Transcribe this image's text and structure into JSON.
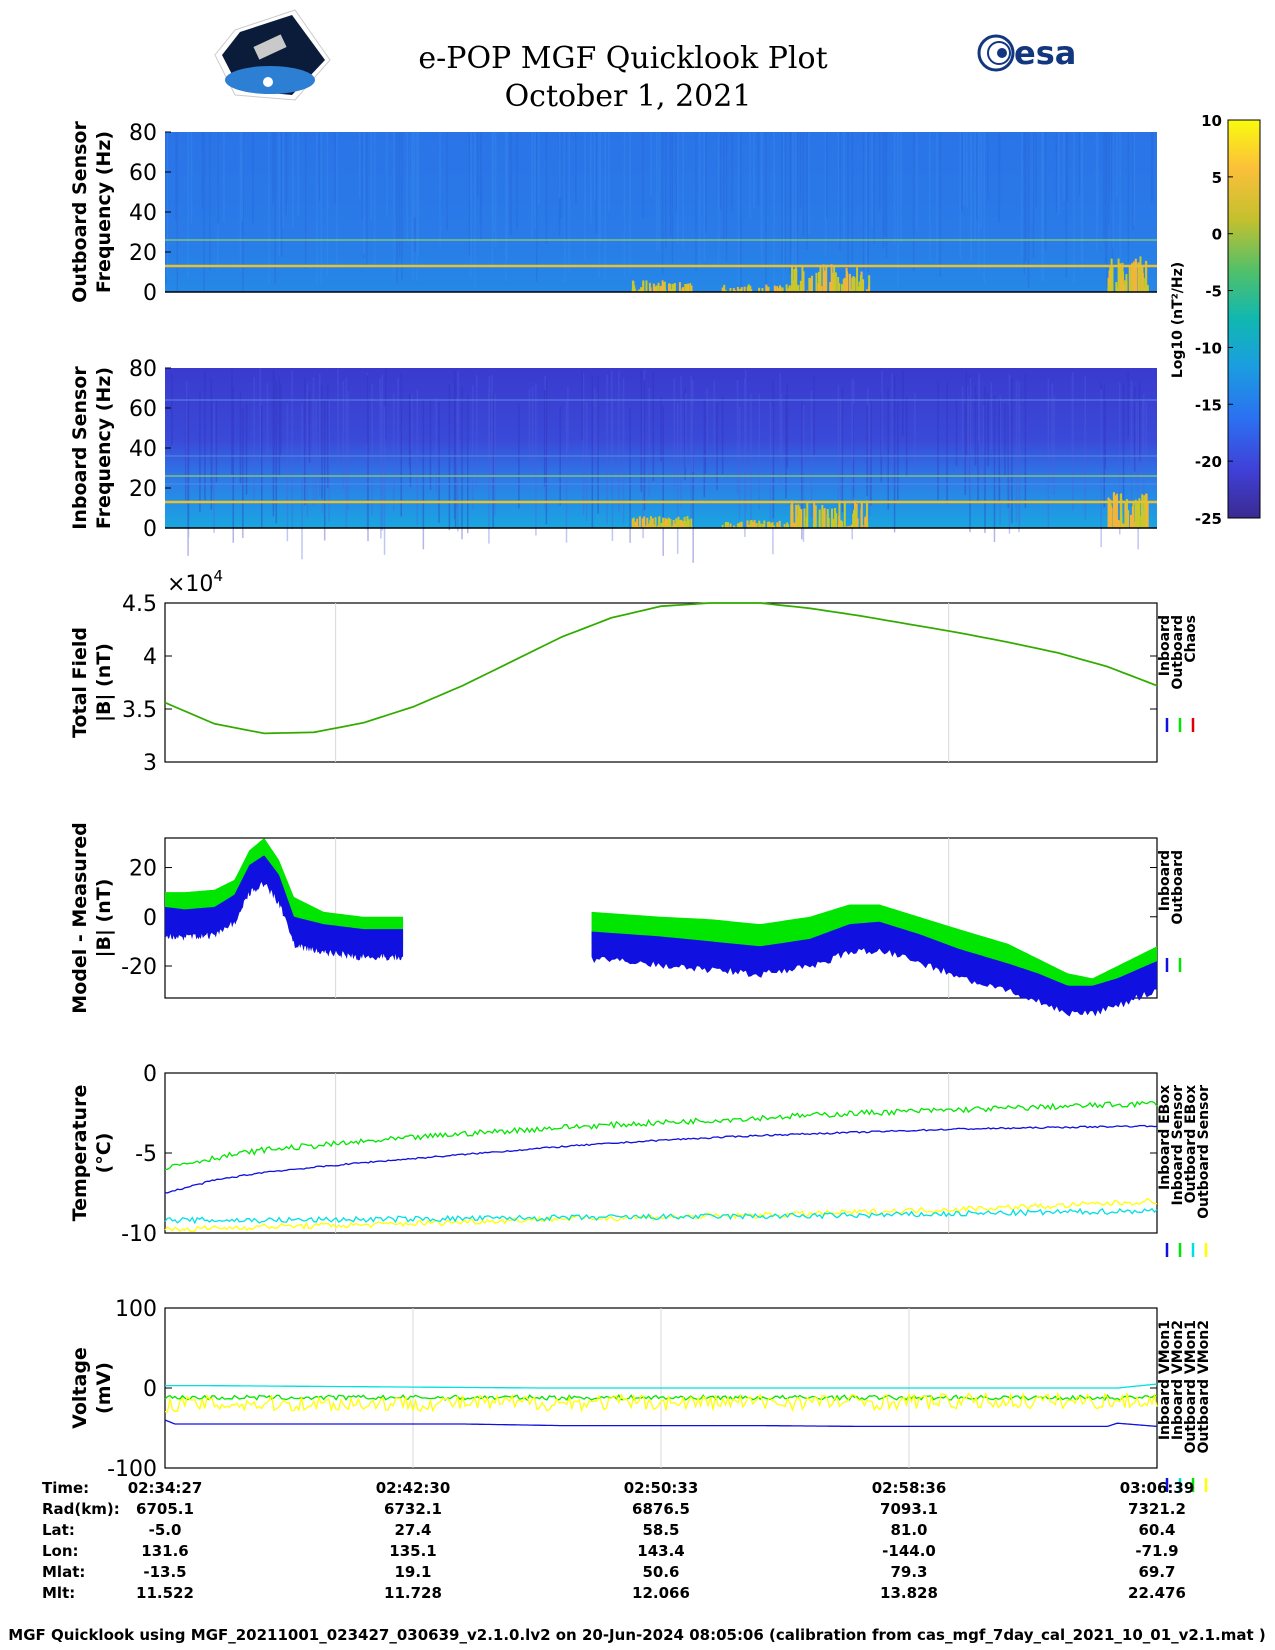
{
  "header": {
    "title": "e-POP MGF Quicklook Plot",
    "date": "October 1, 2021",
    "mission_logo": "cassiope-mission-logo",
    "agency_logo_text": "esa"
  },
  "footer": "MGF Quicklook using MGF_20211001_023427_030639_v2.1.0.lv2 on 20-Jun-2024 08:05:06 (calibration from cas_mgf_7day_cal_2021_10_01_v2.1.mat )",
  "colors": {
    "inboard": "#1010e0",
    "outboard": "#00e600",
    "chaos": "#e00000",
    "outboard_ebox": "#00e0e0",
    "outboard_sensor": "#ffff00",
    "spectro_base_out": "#2b6fe6",
    "spectro_base_in": "#3a3fd1"
  },
  "ephemeris": {
    "row_labels": [
      "Time:",
      "Rad(km):",
      "Lat:",
      "Lon:",
      "Mlat:",
      "Mlt:"
    ],
    "columns": [
      [
        "02:34:27",
        "6705.1",
        "-5.0",
        "131.6",
        "-13.5",
        "11.522"
      ],
      [
        "02:42:30",
        "6732.1",
        "27.4",
        "135.1",
        "19.1",
        "11.728"
      ],
      [
        "02:50:33",
        "6876.5",
        "58.5",
        "143.4",
        "50.6",
        "12.066"
      ],
      [
        "02:58:36",
        "7093.1",
        "81.0",
        "-144.0",
        "79.3",
        "13.828"
      ],
      [
        "03:06:39",
        "7321.2",
        "60.4",
        "-71.9",
        "69.7",
        "22.476"
      ]
    ]
  },
  "chart_data": [
    {
      "type": "heatmap",
      "id": "outboard-spectrogram",
      "ylabel": [
        "Outboard Sensor",
        "Frequency (Hz)"
      ],
      "yticks": [
        0,
        20,
        40,
        60,
        80
      ],
      "ylim": [
        0,
        80
      ],
      "lines_hz": [
        13,
        26
      ],
      "colorbar": {
        "label": "Log10 (nT²/Hz)",
        "ticks": [
          10,
          5,
          0,
          -5,
          -10,
          -15,
          -20,
          -25
        ],
        "range": [
          -25,
          10
        ]
      }
    },
    {
      "type": "heatmap",
      "id": "inboard-spectrogram",
      "ylabel": [
        "Inboard Sensor",
        "Frequency (Hz)"
      ],
      "yticks": [
        0,
        20,
        40,
        60,
        80
      ],
      "ylim": [
        0,
        80
      ],
      "lines_hz": [
        13,
        26
      ]
    },
    {
      "type": "line",
      "id": "total-field",
      "ylabel": [
        "Total Field",
        "|B| (nT)"
      ],
      "exponent_label": "×10",
      "exponent_power": "4",
      "yticks": [
        3,
        3.5,
        4,
        4.5
      ],
      "ylim": [
        3,
        4.5
      ],
      "legend": [
        "Inboard",
        "Outboard",
        "Chaos"
      ],
      "series": [
        {
          "name": "Outboard",
          "x": [
            0,
            0.05,
            0.1,
            0.15,
            0.2,
            0.25,
            0.3,
            0.35,
            0.4,
            0.45,
            0.5,
            0.55,
            0.6,
            0.65,
            0.7,
            0.75,
            0.8,
            0.85,
            0.9,
            0.95,
            1.0
          ],
          "y": [
            3.56,
            3.36,
            3.27,
            3.28,
            3.37,
            3.52,
            3.72,
            3.95,
            4.18,
            4.36,
            4.47,
            4.5,
            4.5,
            4.45,
            4.38,
            4.3,
            4.22,
            4.13,
            4.03,
            3.9,
            3.72
          ]
        }
      ]
    },
    {
      "type": "line",
      "id": "model-measured",
      "ylabel": [
        "Model - Measured",
        "|B| (nT)"
      ],
      "yticks": [
        -20,
        0,
        20
      ],
      "ylim": [
        -33,
        32
      ],
      "legend": [
        "Inboard",
        "Outboard"
      ],
      "series": [
        {
          "name": "Outboard",
          "segments": [
            {
              "x": [
                0,
                0.02,
                0.05,
                0.07,
                0.085,
                0.1,
                0.115,
                0.13,
                0.16,
                0.2,
                0.24
              ],
              "y": [
                5,
                5,
                6,
                10,
                22,
                27,
                18,
                3,
                -3,
                -5,
                -5
              ]
            },
            {
              "x": [
                0.43,
                0.5,
                0.55,
                0.6,
                0.65,
                0.69,
                0.72,
                0.76,
                0.8,
                0.85,
                0.88,
                0.91,
                0.935,
                0.96,
                1.0
              ],
              "y": [
                -3,
                -5,
                -6,
                -8,
                -5,
                0,
                0,
                -5,
                -10,
                -16,
                -22,
                -28,
                -30,
                -25,
                -17
              ]
            }
          ]
        },
        {
          "name": "Inboard",
          "segments": [
            {
              "x": [
                0,
                0.02,
                0.05,
                0.07,
                0.085,
                0.1,
                0.115,
                0.13,
                0.16,
                0.2,
                0.24
              ],
              "y": [
                -1,
                -2,
                -1,
                4,
                16,
                20,
                12,
                -5,
                -8,
                -10,
                -10
              ]
            },
            {
              "x": [
                0.43,
                0.5,
                0.55,
                0.6,
                0.65,
                0.69,
                0.72,
                0.76,
                0.8,
                0.85,
                0.88,
                0.91,
                0.935,
                0.96,
                1.0
              ],
              "y": [
                -11,
                -13,
                -15,
                -17,
                -14,
                -8,
                -7,
                -12,
                -18,
                -24,
                -28,
                -33,
                -33,
                -30,
                -23
              ]
            }
          ]
        }
      ]
    },
    {
      "type": "line",
      "id": "temperature",
      "ylabel": [
        "Temperature",
        "(°C)"
      ],
      "yticks": [
        -10,
        -5,
        0
      ],
      "ylim": [
        -10,
        0
      ],
      "legend": [
        "Inboard EBox",
        "Inboard Sensor",
        "Outboard EBox",
        "Outboard Sensor"
      ],
      "series": [
        {
          "name": "Outboard EBox",
          "x": [
            0,
            0.05,
            0.1,
            0.2,
            0.3,
            0.4,
            0.5,
            0.6,
            0.7,
            0.8,
            0.9,
            1.0
          ],
          "y": [
            -5.9,
            -5.3,
            -4.8,
            -4.3,
            -3.8,
            -3.4,
            -3.1,
            -2.8,
            -2.5,
            -2.3,
            -2.1,
            -1.9
          ]
        },
        {
          "name": "Inboard EBox",
          "x": [
            0,
            0.05,
            0.1,
            0.2,
            0.3,
            0.4,
            0.5,
            0.6,
            0.7,
            0.8,
            0.9,
            1.0
          ],
          "y": [
            -7.5,
            -6.7,
            -6.2,
            -5.6,
            -5.1,
            -4.6,
            -4.2,
            -3.9,
            -3.7,
            -3.5,
            -3.4,
            -3.3
          ]
        },
        {
          "name": "Outboard Sensor",
          "x": [
            0,
            0.1,
            0.2,
            0.3,
            0.4,
            0.5,
            0.6,
            0.7,
            0.8,
            0.9,
            1.0
          ],
          "y": [
            -9.8,
            -9.6,
            -9.5,
            -9.3,
            -9.1,
            -9.0,
            -8.9,
            -8.7,
            -8.5,
            -8.3,
            -8.0
          ]
        },
        {
          "name": "Inboard Sensor",
          "x": [
            0,
            0.1,
            0.2,
            0.3,
            0.4,
            0.5,
            0.6,
            0.7,
            0.8,
            0.9,
            1.0
          ],
          "y": [
            -9.2,
            -9.2,
            -9.15,
            -9.1,
            -9.05,
            -9.0,
            -8.95,
            -8.9,
            -8.8,
            -8.7,
            -8.6
          ]
        }
      ]
    },
    {
      "type": "line",
      "id": "voltage",
      "ylabel": [
        "Voltage",
        "(mV)"
      ],
      "yticks": [
        -100,
        0,
        100
      ],
      "ylim": [
        -100,
        100
      ],
      "legend": [
        "Inboard VMon1",
        "Inboard VMon2",
        "Outboard VMon1",
        "Outboard VMon2"
      ],
      "series": [
        {
          "name": "Outboard VMon1",
          "x": [
            0,
            0.04,
            0.38,
            0.96,
            1.0
          ],
          "y": [
            3,
            3,
            0,
            0,
            5
          ]
        },
        {
          "name": "Inboard VMon2",
          "x": [
            0,
            0.5,
            1.0
          ],
          "y": [
            -12,
            -12,
            -12
          ]
        },
        {
          "name": "Outboard VMon2",
          "x": [
            0,
            0.5,
            1.0
          ],
          "y": [
            -20,
            -18,
            -16
          ]
        },
        {
          "name": "Inboard VMon1",
          "x": [
            0,
            0.01,
            0.3,
            0.4,
            0.6,
            0.7,
            0.95,
            0.96,
            1.0
          ],
          "y": [
            -40,
            -45,
            -45,
            -47,
            -47,
            -48,
            -48,
            -44,
            -48
          ]
        }
      ]
    }
  ]
}
